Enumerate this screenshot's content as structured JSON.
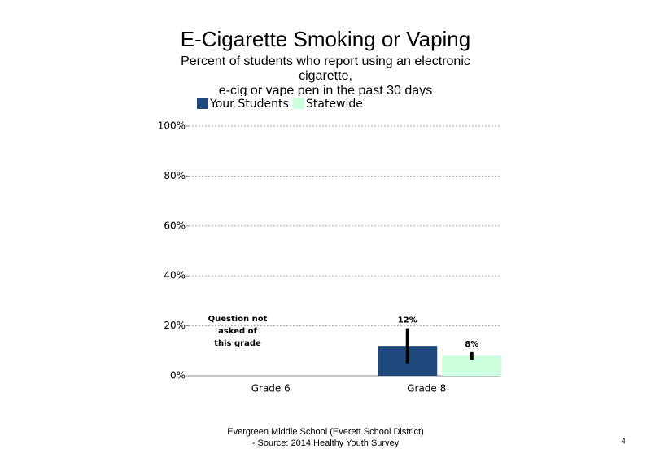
{
  "chart_data": {
    "type": "bar",
    "title": "E-Cigarette Smoking or Vaping",
    "subtitle": [
      "Percent of students  who report using an electronic",
      "cigarette,",
      "e-cig or vape pen in the past 30 days"
    ],
    "categories": [
      "Grade 6",
      "Grade 8"
    ],
    "series": [
      {
        "name": "Your Students",
        "color": "#1f497d",
        "values": [
          null,
          12
        ],
        "errors": [
          null,
          7
        ],
        "value_labels": [
          null,
          "12%"
        ]
      },
      {
        "name": "Statewide",
        "color": "#ccffdd",
        "values": [
          null,
          8
        ],
        "errors": [
          null,
          1.5
        ],
        "value_labels": [
          null,
          "8%"
        ]
      }
    ],
    "annotation": [
      "Question not",
      "asked of",
      "this grade"
    ],
    "ylim": [
      0,
      100
    ],
    "yticks": [
      {
        "value": 0,
        "label": "0%"
      },
      {
        "value": 20,
        "label": "20%"
      },
      {
        "value": 40,
        "label": "40%"
      },
      {
        "value": 60,
        "label": "60%"
      },
      {
        "value": 80,
        "label": "80%"
      },
      {
        "value": 100,
        "label": "100%"
      }
    ],
    "grid": true,
    "footer": [
      "Evergreen Middle School (Everett School District)",
      "- Source: 2014 Healthy  Youth Survey"
    ],
    "page_number": "4"
  }
}
